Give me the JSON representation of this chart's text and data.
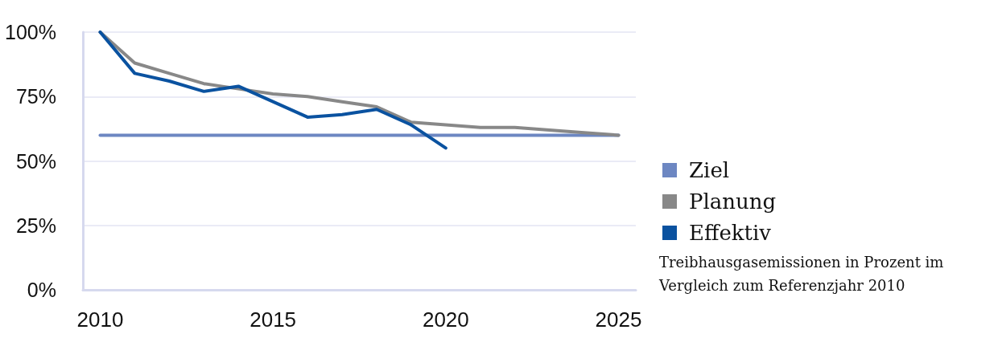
{
  "chart_data": {
    "type": "line",
    "categories": [
      "2010",
      null,
      null,
      null,
      null,
      "2015",
      null,
      null,
      null,
      null,
      "2020",
      null,
      null,
      null,
      null,
      "2025"
    ],
    "series": [
      {
        "name": "Ziel",
        "color": "#6d87c2",
        "values": [
          60,
          60,
          60,
          60,
          60,
          60,
          60,
          60,
          60,
          60,
          60,
          60,
          60,
          60,
          60,
          60
        ]
      },
      {
        "name": "Planung",
        "color": "#888888",
        "values": [
          100,
          88,
          84,
          80,
          78,
          76,
          75,
          73,
          71,
          65,
          64,
          63,
          63,
          62,
          61,
          60
        ]
      },
      {
        "name": "Effektiv",
        "color": "#0a52a0",
        "values": [
          100,
          84,
          81,
          77,
          79,
          73,
          67,
          68,
          70,
          64,
          55,
          null,
          null,
          null,
          null,
          null
        ]
      }
    ],
    "ylim": [
      0,
      100
    ],
    "yticks": [
      {
        "value": 0,
        "label": "0%"
      },
      {
        "value": 25,
        "label": "25%"
      },
      {
        "value": 50,
        "label": "50%"
      },
      {
        "value": 75,
        "label": "75%"
      },
      {
        "value": 100,
        "label": "100%"
      }
    ],
    "grid": "y",
    "legend": "right",
    "marker": "none",
    "line_style": "solid",
    "annotations": [
      "Treibhausgasemissionen in Prozent im Vergleich zum Referenzjahr 2010"
    ]
  }
}
